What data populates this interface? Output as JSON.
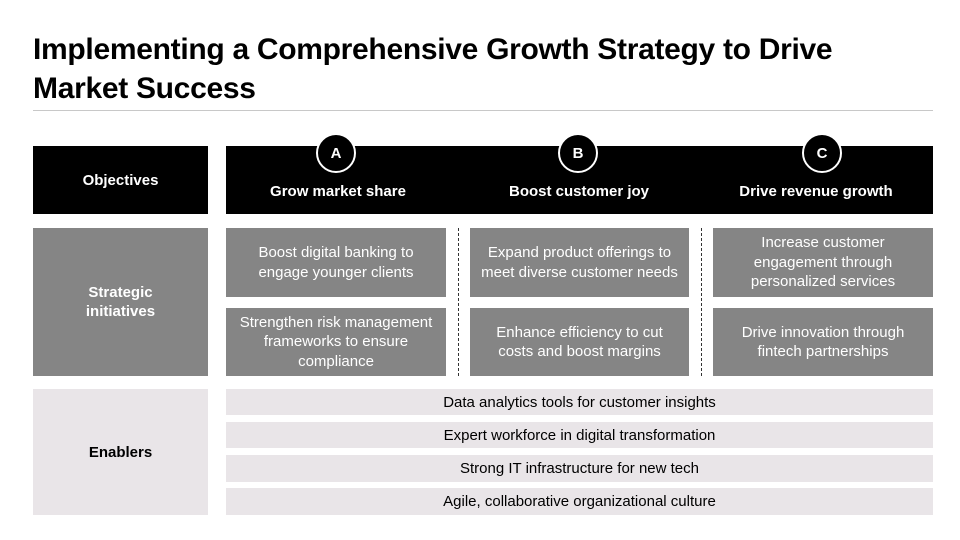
{
  "title": "Implementing a Comprehensive Growth Strategy to Drive Market Success",
  "rows": {
    "objectives_label": "Objectives",
    "initiatives_label": "Strategic initiatives",
    "enablers_label": "Enablers"
  },
  "objectives": [
    {
      "letter": "A",
      "title": "Grow market share",
      "initiatives": [
        "Boost digital banking to engage younger clients",
        "Strengthen risk management frameworks to ensure compliance"
      ]
    },
    {
      "letter": "B",
      "title": "Boost customer joy",
      "initiatives": [
        "Expand product offerings to meet diverse customer needs",
        "Enhance efficiency to cut costs and boost margins"
      ]
    },
    {
      "letter": "C",
      "title": "Drive revenue growth",
      "initiatives": [
        "Increase customer engagement through personalized services",
        "Drive innovation through fintech partnerships"
      ]
    }
  ],
  "enablers": [
    "Data analytics tools for customer insights",
    "Expert workforce in digital transformation",
    "Strong IT infrastructure for new tech",
    "Agile, collaborative organizational culture"
  ],
  "colors": {
    "black": "#000000",
    "gray": "#858585",
    "light": "#e9e5e8"
  }
}
